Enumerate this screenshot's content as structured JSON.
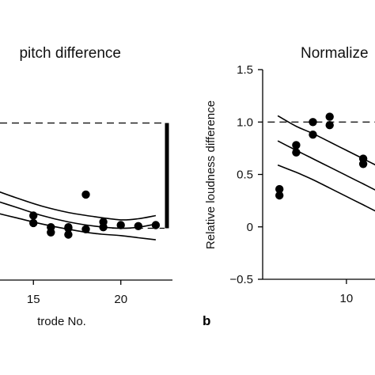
{
  "colors": {
    "ink": "#000000",
    "background": "#ffffff"
  },
  "chart_data": [
    {
      "panel": "a",
      "type": "scatter",
      "title": "pitch difference",
      "xlabel": "trode No.",
      "ylabel": "",
      "xlim": [
        12.5,
        23
      ],
      "ylim": [
        -0.5,
        1.5
      ],
      "x_ticks": [
        15,
        20
      ],
      "x_reversed": false,
      "grid": false,
      "points": [
        {
          "x": 15,
          "y": 0.12
        },
        {
          "x": 15,
          "y": 0.05
        },
        {
          "x": 16,
          "y": 0.01
        },
        {
          "x": 16,
          "y": -0.04
        },
        {
          "x": 17,
          "y": -0.06
        },
        {
          "x": 17,
          "y": 0.01
        },
        {
          "x": 17,
          "y": 0.0
        },
        {
          "x": 18,
          "y": 0.32
        },
        {
          "x": 18,
          "y": -0.01
        },
        {
          "x": 19,
          "y": 0.06
        },
        {
          "x": 19,
          "y": 0.01
        },
        {
          "x": 20,
          "y": 0.03
        },
        {
          "x": 21,
          "y": 0.02
        },
        {
          "x": 22,
          "y": 0.03
        }
      ],
      "fit_curves": [
        {
          "name": "",
          "x": [
            12.5,
            14,
            15.5,
            17,
            18.5,
            20,
            21,
            22
          ],
          "y": [
            0.38,
            0.29,
            0.21,
            0.15,
            0.11,
            0.08,
            0.09,
            0.12
          ]
        },
        {
          "name": "",
          "x": [
            12.5,
            14,
            15.5,
            17,
            18.5,
            20,
            21,
            22
          ],
          "y": [
            0.28,
            0.2,
            0.12,
            0.06,
            0.02,
            0.0,
            0.01,
            0.04
          ]
        },
        {
          "name": "",
          "x": [
            12.5,
            14,
            15.5,
            17,
            18.5,
            20,
            21,
            22
          ],
          "y": [
            0.16,
            0.1,
            0.04,
            -0.01,
            -0.05,
            -0.07,
            -0.09,
            -0.11
          ]
        }
      ],
      "reference_lines": [
        {
          "y": 1.0,
          "x_from": 12.5,
          "x_to": 22.5
        },
        {
          "y": 0.0,
          "x_from": 19.5,
          "x_to": 22.5
        }
      ],
      "scale_bar": {
        "from": 0.0,
        "to": 1.0
      }
    },
    {
      "panel": "b",
      "type": "scatter",
      "title": "Normalize",
      "panel_label": "b",
      "xlabel": "",
      "ylabel": "Relative loudness difference",
      "xlim": [
        5,
        13.5
      ],
      "ylim": [
        -0.5,
        1.5
      ],
      "x_ticks": [
        10
      ],
      "y_ticks": [
        -0.5,
        0,
        0.5,
        1.0,
        1.5
      ],
      "y_tick_labels": [
        "−0.5",
        "0",
        "0.5",
        "1.0",
        "1.5"
      ],
      "grid": false,
      "points": [
        {
          "x": 6,
          "y": 0.36
        },
        {
          "x": 6,
          "y": 0.3
        },
        {
          "x": 7,
          "y": 0.78
        },
        {
          "x": 7,
          "y": 0.71
        },
        {
          "x": 8,
          "y": 1.0
        },
        {
          "x": 8,
          "y": 0.88
        },
        {
          "x": 9,
          "y": 1.05
        },
        {
          "x": 9,
          "y": 0.97
        },
        {
          "x": 11,
          "y": 0.65
        },
        {
          "x": 11,
          "y": 0.6
        }
      ],
      "fit_curves": [
        {
          "name": "",
          "x": [
            5.9,
            7,
            8,
            9,
            10,
            11,
            12,
            13.5
          ],
          "y": [
            1.06,
            0.96,
            0.89,
            0.81,
            0.73,
            0.65,
            0.57,
            0.46
          ]
        },
        {
          "name": "",
          "x": [
            5.9,
            7,
            8,
            9,
            10,
            11,
            12,
            13.5
          ],
          "y": [
            0.82,
            0.73,
            0.65,
            0.57,
            0.49,
            0.41,
            0.33,
            0.22
          ]
        },
        {
          "name": "",
          "x": [
            5.9,
            7,
            8,
            9,
            10,
            11,
            12,
            13.5
          ],
          "y": [
            0.59,
            0.52,
            0.45,
            0.37,
            0.29,
            0.21,
            0.13,
            0.02
          ]
        }
      ],
      "reference_lines": [
        {
          "y": 1.0,
          "x_from": 5.3,
          "x_to": 13.5
        }
      ]
    }
  ]
}
